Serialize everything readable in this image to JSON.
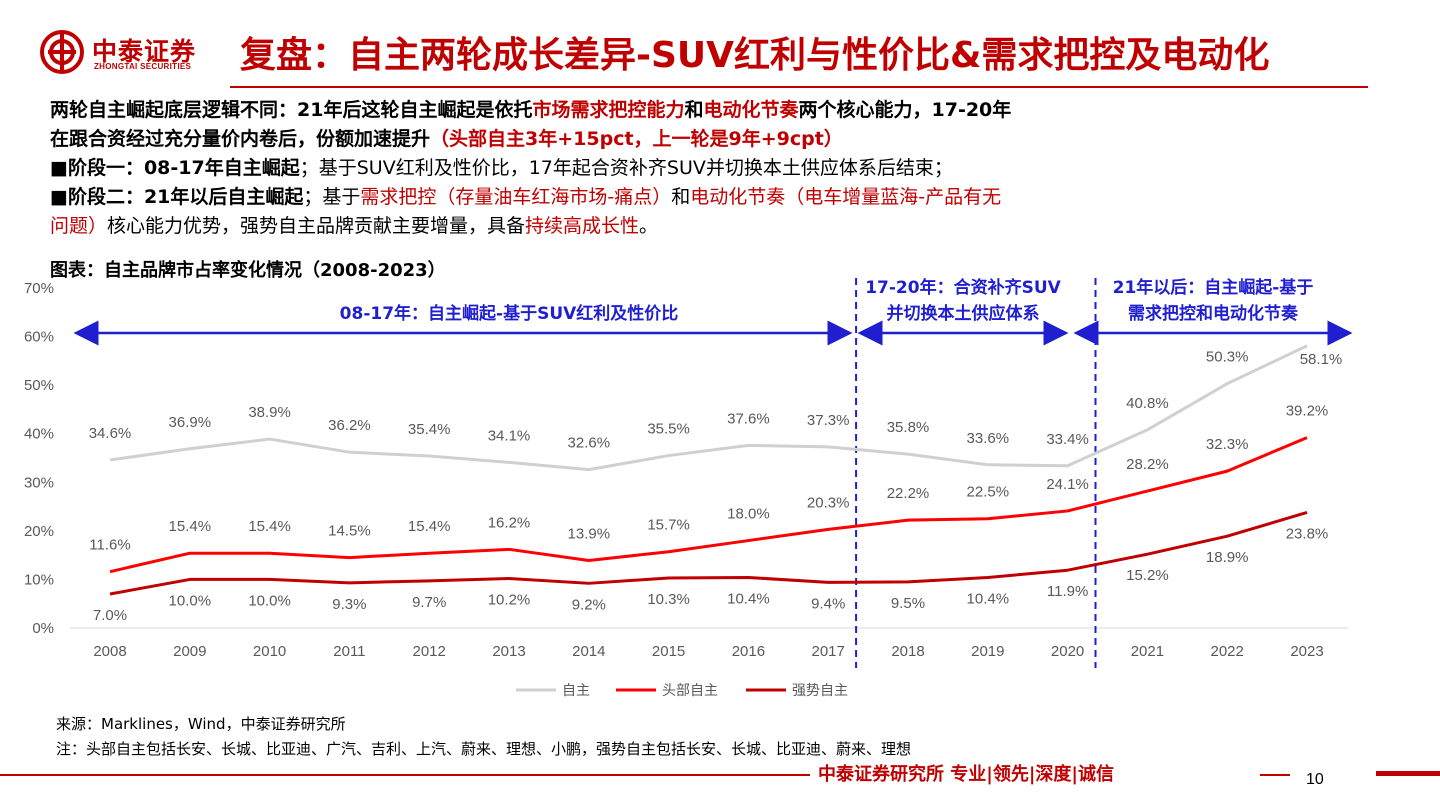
{
  "brand": {
    "name_cn": "中泰证券",
    "name_en": "ZHONGTAI SECURITIES",
    "red": "#c00000"
  },
  "title": "复盘：自主两轮成长差异-SUV红利与性价比&需求把控及电动化",
  "body": {
    "p1": {
      "a": "两轮自主崛起底层逻辑不同：21年后这轮自主崛起是依托",
      "b": "市场需求把控能力",
      "c": "和",
      "d": "电动化节奏",
      "e": "两个核心能力，17-20年",
      "f": "在跟合资经过充分量价内卷后，份额加速提升",
      "g": "（头部自主3年+15pct，上一轮是9年+9cpt）"
    },
    "p2": {
      "a": "■阶段一：08-17年自主崛起",
      "b": "；基于SUV红利及性价比，17年起合资补齐SUV并切换本土供应体系后结束；"
    },
    "p3": {
      "a": "■阶段二：21年以后自主崛起",
      "b": "；基于",
      "c": "需求把控（存量油车红海市场-痛点）",
      "d": "和",
      "e": "电动化节奏（电车增量蓝海-产品有无",
      "f": "问题）",
      "g": "核心能力优势，强势自主品牌贡献主要增量，具备",
      "h": "持续高成长性",
      "i": "。"
    }
  },
  "chart_caption": "图表：自主品牌市占率变化情况（2008-2023）",
  "chart_data": {
    "type": "line",
    "categories": [
      "2008",
      "2009",
      "2010",
      "2011",
      "2012",
      "2013",
      "2014",
      "2015",
      "2016",
      "2017",
      "2018",
      "2019",
      "2020",
      "2021",
      "2022",
      "2023"
    ],
    "ylim": [
      0,
      70
    ],
    "y_ticks": [
      "0%",
      "10%",
      "20%",
      "30%",
      "40%",
      "50%",
      "60%",
      "70%"
    ],
    "grid": false,
    "legend": "bottom-center",
    "series": [
      {
        "name": "自主",
        "color": "#d0d0d0",
        "values": [
          34.6,
          36.9,
          38.9,
          36.2,
          35.4,
          34.1,
          32.6,
          35.5,
          37.6,
          37.3,
          35.8,
          33.6,
          33.4,
          40.8,
          50.3,
          58.1
        ],
        "labels": [
          "34.6%",
          "36.9%",
          "38.9%",
          "36.2%",
          "35.4%",
          "34.1%",
          "32.6%",
          "35.5%",
          "37.6%",
          "37.3%",
          "35.8%",
          "33.6%",
          "33.4%",
          "40.8%",
          "50.3%",
          "58.1%"
        ]
      },
      {
        "name": "头部自主",
        "color": "#ff0000",
        "values": [
          11.6,
          15.4,
          15.4,
          14.5,
          15.4,
          16.2,
          13.9,
          15.7,
          18.0,
          20.3,
          22.2,
          22.5,
          24.1,
          28.2,
          32.3,
          39.2
        ],
        "labels": [
          "11.6%",
          "15.4%",
          "15.4%",
          "14.5%",
          "15.4%",
          "16.2%",
          "13.9%",
          "15.7%",
          "18.0%",
          "20.3%",
          "22.2%",
          "22.5%",
          "24.1%",
          "28.2%",
          "32.3%",
          "39.2%"
        ]
      },
      {
        "name": "强势自主",
        "color": "#c00000",
        "values": [
          7.0,
          10.0,
          10.0,
          9.3,
          9.7,
          10.2,
          9.2,
          10.3,
          10.4,
          9.4,
          9.5,
          10.4,
          11.9,
          15.2,
          18.9,
          23.8
        ],
        "labels": [
          "7.0%",
          "10.0%",
          "10.0%",
          "9.3%",
          "9.7%",
          "10.2%",
          "9.2%",
          "10.3%",
          "10.4%",
          "9.4%",
          "9.5%",
          "10.4%",
          "11.9%",
          "15.2%",
          "18.9%",
          "23.8%"
        ]
      }
    ],
    "annotations": [
      {
        "text": [
          "08-17年：自主崛起-基于SUV红利及性价比"
        ],
        "from": "2008",
        "to": "2017"
      },
      {
        "text": [
          "17-20年：合资补齐SUV",
          "并切换本土供应体系"
        ],
        "from": "2017",
        "to": "2020"
      },
      {
        "text": [
          "21年以后：自主崛起-基于",
          "需求把控和电动化节奏"
        ],
        "from": "2020",
        "to": "2023"
      }
    ],
    "dividers": [
      "2017",
      "2020"
    ]
  },
  "footnotes": {
    "source": "来源：Marklines，Wind，中泰证券研究所",
    "note": "注：头部自主包括长安、长城、比亚迪、广汽、吉利、上汽、蔚来、理想、小鹏，强势自主包括长安、长城、比亚迪、蔚来、理想"
  },
  "footer": {
    "slogan": "中泰证券研究所 专业|领先|深度|诚信",
    "page": "10"
  }
}
